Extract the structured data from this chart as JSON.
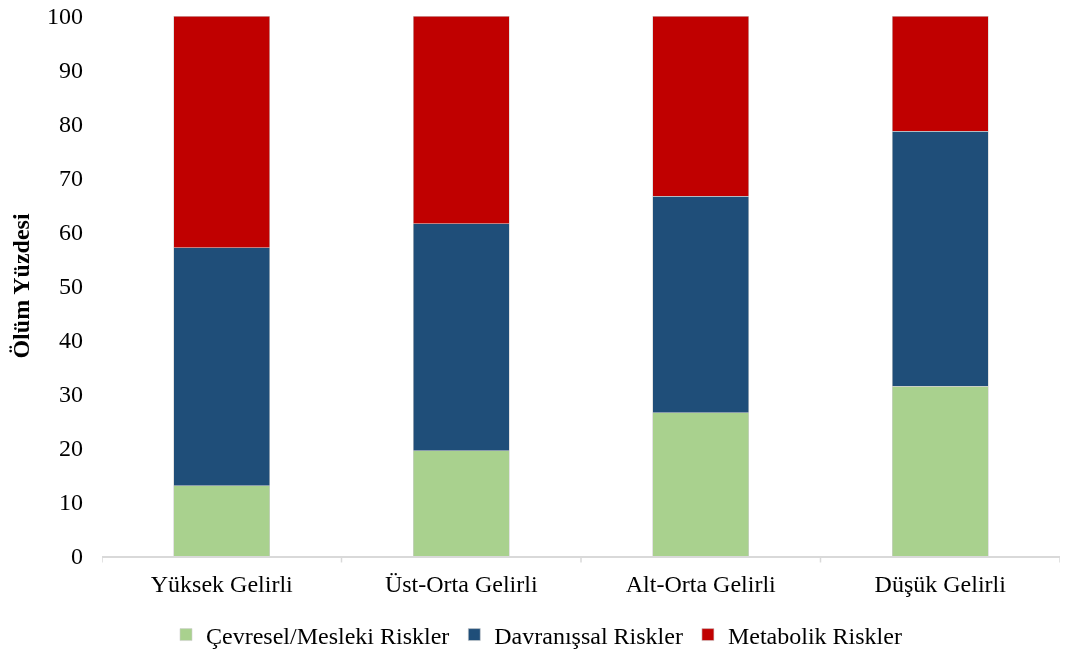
{
  "chart_data": {
    "type": "bar",
    "stacked": true,
    "ylabel": "Ölüm Yüzdesi",
    "categories": [
      "Yüksek Gelirli",
      "Üst-Orta Gelirli",
      "Alt-Orta Gelirli",
      "Düşük Gelirli"
    ],
    "series": [
      {
        "name": "Çevresel/Mesleki Riskler",
        "color": "#a9d18e",
        "values": [
          13.0,
          19.5,
          26.5,
          31.4
        ]
      },
      {
        "name": "Davranışsal Riskler",
        "color": "#1f4e79",
        "values": [
          44.1,
          42.0,
          40.1,
          47.3
        ]
      },
      {
        "name": "Metabolik Riskler",
        "color": "#c00000",
        "values": [
          42.9,
          38.5,
          33.4,
          21.3
        ]
      }
    ],
    "ylim": [
      0,
      100
    ],
    "yticks": [
      0,
      10,
      20,
      30,
      40,
      50,
      60,
      70,
      80,
      90,
      100
    ],
    "legend": "bottom"
  }
}
